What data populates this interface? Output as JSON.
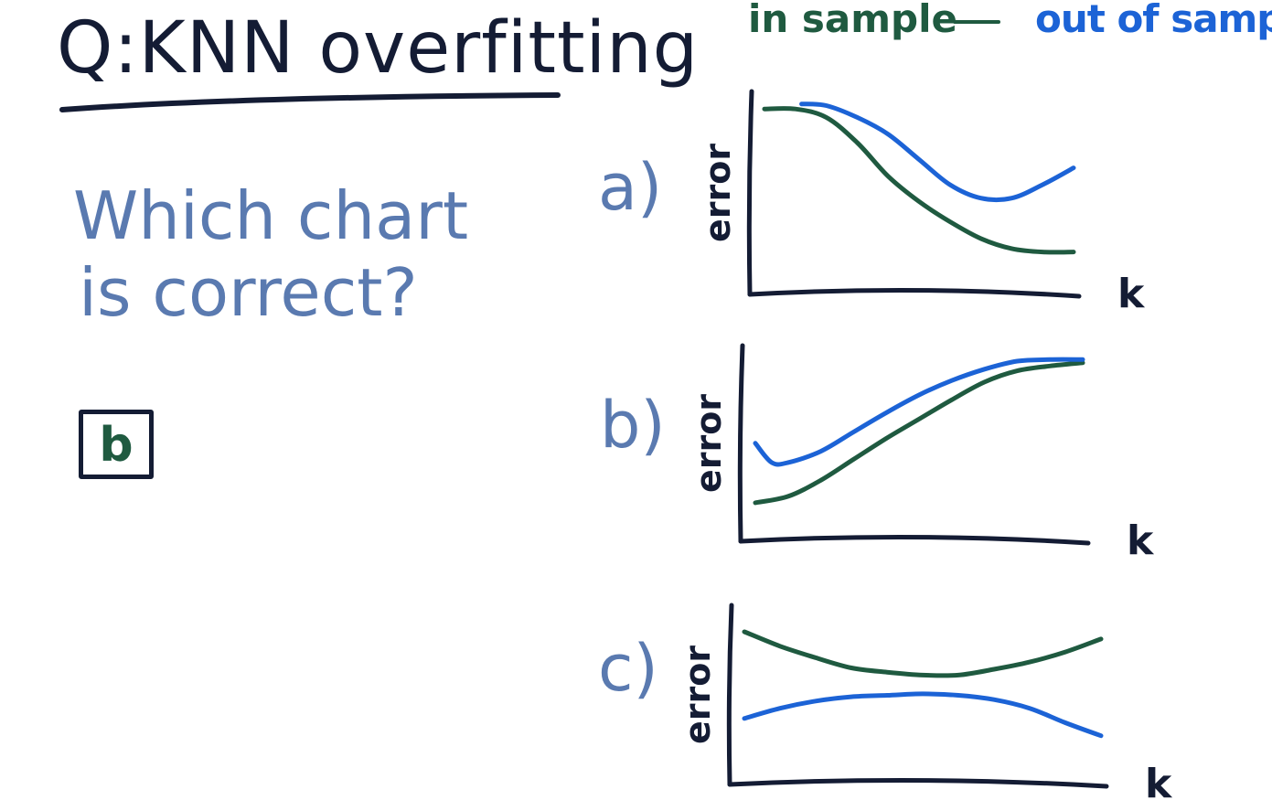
{
  "title": "Q:KNN overfitting",
  "legend": {
    "in_sample": "in sample",
    "separator": "—",
    "out_of_sample": "out of sample"
  },
  "question": {
    "line1": "Which chart",
    "line2": "is correct?"
  },
  "answer": "b",
  "colors": {
    "in_sample": "#1f5a40",
    "out_of_sample": "#1c63d6",
    "axis": "#141c34",
    "question": "#5a7ab0"
  },
  "chart_data": [
    {
      "type": "line",
      "label": "a)",
      "xlabel": "k",
      "ylabel": "error",
      "ylim": [
        0,
        1
      ],
      "series": [
        {
          "name": "in sample",
          "x": [
            0,
            0.1,
            0.2,
            0.3,
            0.4,
            0.5,
            0.6,
            0.7,
            0.8,
            0.9,
            1.0
          ],
          "values": [
            0.95,
            0.95,
            0.9,
            0.75,
            0.55,
            0.4,
            0.28,
            0.18,
            0.12,
            0.1,
            0.1
          ]
        },
        {
          "name": "out of sample",
          "x": [
            0.12,
            0.2,
            0.3,
            0.4,
            0.5,
            0.6,
            0.7,
            0.8,
            0.9,
            1.0
          ],
          "values": [
            0.98,
            0.97,
            0.9,
            0.8,
            0.65,
            0.5,
            0.42,
            0.42,
            0.5,
            0.6
          ]
        }
      ]
    },
    {
      "type": "line",
      "label": "b)",
      "xlabel": "k",
      "ylabel": "error",
      "ylim": [
        0,
        1
      ],
      "series": [
        {
          "name": "in sample",
          "x": [
            0,
            0.1,
            0.2,
            0.3,
            0.4,
            0.5,
            0.6,
            0.7,
            0.8,
            0.9,
            1.0
          ],
          "values": [
            0.08,
            0.12,
            0.22,
            0.35,
            0.48,
            0.6,
            0.72,
            0.83,
            0.9,
            0.93,
            0.95
          ]
        },
        {
          "name": "out of sample",
          "x": [
            0,
            0.05,
            0.1,
            0.2,
            0.3,
            0.4,
            0.5,
            0.6,
            0.7,
            0.8,
            0.9,
            1.0
          ],
          "values": [
            0.45,
            0.33,
            0.33,
            0.4,
            0.52,
            0.64,
            0.75,
            0.84,
            0.91,
            0.96,
            0.97,
            0.97
          ]
        }
      ]
    },
    {
      "type": "line",
      "label": "c)",
      "xlabel": "k",
      "ylabel": "error",
      "ylim": [
        0,
        1
      ],
      "series": [
        {
          "name": "in sample",
          "x": [
            0,
            0.1,
            0.2,
            0.3,
            0.4,
            0.5,
            0.6,
            0.7,
            0.8,
            0.9,
            1.0
          ],
          "values": [
            0.88,
            0.78,
            0.7,
            0.63,
            0.6,
            0.58,
            0.58,
            0.62,
            0.67,
            0.74,
            0.83
          ]
        },
        {
          "name": "out of sample",
          "x": [
            0,
            0.1,
            0.2,
            0.3,
            0.4,
            0.5,
            0.6,
            0.7,
            0.8,
            0.9,
            1.0
          ],
          "values": [
            0.28,
            0.35,
            0.4,
            0.43,
            0.44,
            0.45,
            0.44,
            0.41,
            0.35,
            0.25,
            0.16
          ]
        }
      ]
    }
  ]
}
